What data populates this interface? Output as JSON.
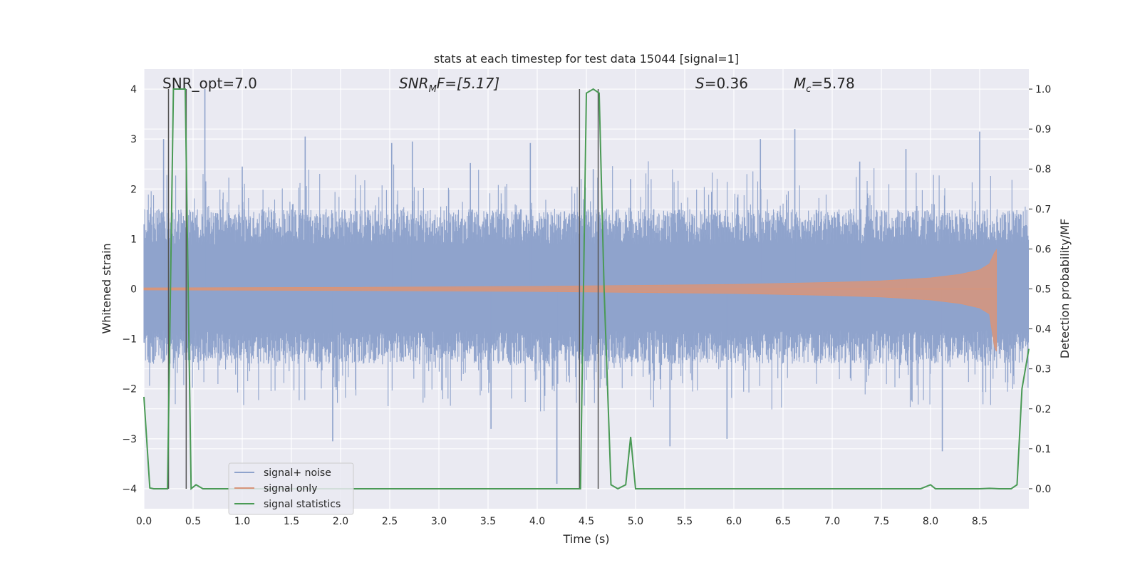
{
  "chart_data": {
    "type": "line",
    "title": "stats at each timestep for test data 15044 [signal=1]",
    "xlabel": "Time (s)",
    "ylabel": "Whitened strain",
    "ylabel_right": "Detection probability/MF",
    "xlim": [
      0,
      9.0
    ],
    "ylim": [
      -4.4,
      4.4
    ],
    "ylim_right": [
      -0.05,
      1.05
    ],
    "x_ticks": [
      "0.0",
      "0.5",
      "1.0",
      "1.5",
      "2.0",
      "2.5",
      "3.0",
      "3.5",
      "4.0",
      "4.5",
      "5.0",
      "5.5",
      "6.0",
      "6.5",
      "7.0",
      "7.5",
      "8.0",
      "8.5"
    ],
    "y_ticks": [
      "4",
      "3",
      "2",
      "1",
      "0",
      "−1",
      "−2",
      "−3",
      "−4"
    ],
    "y_ticks_right": [
      "1.0",
      "0.9",
      "0.8",
      "0.7",
      "0.6",
      "0.5",
      "0.4",
      "0.3",
      "0.2",
      "0.1",
      "0.0"
    ],
    "grid": true,
    "legend_position": "lower-left",
    "annotations": {
      "snr_opt": "SNR_opt=7.0",
      "snr_mf_label": "SNR",
      "snr_mf_sub": "M",
      "snr_mf_rest": "F=[5.17]",
      "s_label": "S",
      "s_value": "=0.36",
      "mc_label": "M",
      "mc_sub": "c",
      "mc_value": "=5.78"
    },
    "series": [
      {
        "name": "signal+ noise",
        "color": "#8fa3cc",
        "axis": "left",
        "description_shape": "dense noise band",
        "band_lower": -1.5,
        "band_upper": 1.6,
        "peaks_x": [
          0.2,
          0.62,
          1.0,
          1.64,
          1.92,
          2.52,
          2.73,
          3.32,
          3.53,
          3.93,
          4.2,
          4.57,
          4.95,
          5.35,
          5.93,
          6.27,
          6.62,
          7.28,
          7.75,
          8.12,
          8.5
        ],
        "peaks_y": [
          3.0,
          4.0,
          2.45,
          3.05,
          -3.05,
          2.92,
          2.95,
          2.52,
          -2.8,
          2.92,
          -3.9,
          2.4,
          2.2,
          -3.15,
          -3.0,
          3.0,
          3.2,
          2.55,
          2.8,
          -3.25,
          3.15
        ]
      },
      {
        "name": "signal only",
        "color": "#d8957a",
        "axis": "left",
        "description_shape": "chirp growing in amplitude until merger",
        "envelope_x": [
          0.0,
          2.0,
          4.0,
          5.0,
          6.0,
          7.0,
          7.5,
          8.0,
          8.3,
          8.5,
          8.6,
          8.65,
          8.67
        ],
        "envelope_y": [
          0.02,
          0.03,
          0.05,
          0.07,
          0.09,
          0.13,
          0.16,
          0.22,
          0.29,
          0.38,
          0.5,
          0.72,
          0.78
        ],
        "end_x": 8.67
      },
      {
        "name": "signal statistics",
        "color": "#4a9a55",
        "axis": "right",
        "x": [
          0.0,
          0.06,
          0.1,
          0.24,
          0.3,
          0.35,
          0.42,
          0.48,
          0.53,
          0.6,
          1.0,
          2.0,
          3.0,
          4.0,
          4.44,
          4.5,
          4.57,
          4.63,
          4.68,
          4.75,
          4.82,
          4.9,
          4.95,
          5.0,
          5.5,
          6.0,
          7.0,
          7.9,
          8.0,
          8.05,
          8.1,
          8.5,
          8.6,
          8.7,
          8.82,
          8.88,
          8.93,
          9.0
        ],
        "y": [
          0.23,
          0.002,
          0.0,
          0.0,
          1.0,
          1.0,
          1.0,
          0.0,
          0.01,
          0.0,
          0.0,
          0.0,
          0.0,
          0.0,
          0.0,
          0.99,
          1.0,
          0.99,
          0.5,
          0.01,
          0.0,
          0.01,
          0.13,
          0.0,
          0.0,
          0.0,
          0.0,
          0.0,
          0.01,
          0.0,
          0.0,
          0.0,
          0.001,
          0.0,
          0.0,
          0.01,
          0.25,
          0.35
        ]
      }
    ],
    "vertical_markers": [
      {
        "x": 0.25,
        "y_range": [
          0.0,
          1.0
        ]
      },
      {
        "x": 0.43,
        "y_range": [
          0.0,
          1.0
        ]
      },
      {
        "x": 4.43,
        "y_range": [
          0.0,
          1.0
        ]
      },
      {
        "x": 4.62,
        "y_range": [
          0.0,
          1.0
        ]
      }
    ]
  }
}
